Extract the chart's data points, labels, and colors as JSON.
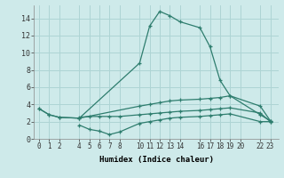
{
  "xlabel": "Humidex (Indice chaleur)",
  "bg_color": "#ceeaea",
  "grid_color": "#aed4d4",
  "line_color": "#2e7d6e",
  "lines": [
    {
      "x": [
        0,
        1,
        2,
        4,
        10,
        11,
        12,
        13,
        14,
        16,
        17,
        18,
        19,
        22,
        23
      ],
      "y": [
        3.5,
        2.8,
        2.5,
        2.4,
        8.8,
        13.1,
        14.8,
        14.3,
        13.6,
        12.9,
        10.7,
        6.8,
        5.0,
        2.8,
        2.1
      ]
    },
    {
      "x": [
        0,
        1,
        2,
        4,
        10,
        11,
        12,
        13,
        14,
        16,
        17,
        18,
        19,
        22,
        23
      ],
      "y": [
        3.5,
        2.8,
        2.5,
        2.4,
        3.8,
        4.0,
        4.2,
        4.4,
        4.5,
        4.6,
        4.7,
        4.8,
        5.0,
        3.8,
        2.1
      ]
    },
    {
      "x": [
        4,
        5,
        6,
        7,
        8,
        10,
        11,
        12,
        13,
        14,
        16,
        17,
        18,
        19,
        22,
        23
      ],
      "y": [
        1.6,
        1.1,
        0.9,
        0.5,
        0.8,
        1.8,
        2.0,
        2.2,
        2.4,
        2.5,
        2.6,
        2.7,
        2.8,
        2.9,
        2.0,
        2.0
      ]
    },
    {
      "x": [
        4,
        5,
        6,
        7,
        8,
        10,
        11,
        12,
        13,
        14,
        16,
        17,
        18,
        19,
        22,
        23
      ],
      "y": [
        2.5,
        2.6,
        2.6,
        2.6,
        2.6,
        2.8,
        2.9,
        3.0,
        3.1,
        3.2,
        3.3,
        3.4,
        3.5,
        3.6,
        3.0,
        2.0
      ]
    }
  ],
  "xlim": [
    -0.5,
    23.8
  ],
  "ylim": [
    0,
    15.5
  ],
  "yticks": [
    0,
    2,
    4,
    6,
    8,
    10,
    12,
    14
  ],
  "xticks": [
    0,
    1,
    2,
    4,
    5,
    6,
    7,
    8,
    10,
    11,
    12,
    13,
    14,
    16,
    17,
    18,
    19,
    20,
    22,
    23
  ],
  "xtick_labels": [
    "0",
    "1",
    "2",
    "4",
    "5",
    "6",
    "7",
    "8",
    "10",
    "11",
    "12",
    "13",
    "14",
    "16",
    "17",
    "18",
    "19",
    "20",
    "22",
    "23"
  ]
}
